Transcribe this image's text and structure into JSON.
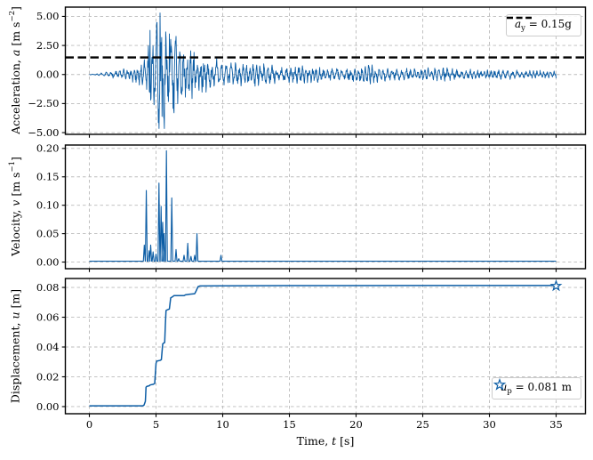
{
  "figure": {
    "xlabel": {
      "prefix": "Time, ",
      "var": "t",
      "suffix": " [s]"
    },
    "x_ticks": {
      "values": [
        0,
        5,
        10,
        15,
        20,
        25,
        30,
        35
      ],
      "labels": [
        "0",
        "5",
        "10",
        "15",
        "20",
        "25",
        "30",
        "35"
      ]
    },
    "xlim": [
      -1.8,
      37.2
    ],
    "colors": {
      "line": "#0C5DA5",
      "threshold": "#000000",
      "grid": "#bbbbbb",
      "spine": "#000000",
      "legend_border": "#cccccc",
      "tick_text": "#000000"
    }
  },
  "chart_data": [
    {
      "id": "acceleration",
      "type": "line",
      "ylabel": {
        "prefix": "Acceleration, ",
        "var": "a",
        "mid": " [m s",
        "sup": "−2",
        "suffix": "]"
      },
      "y_ticks": {
        "values": [
          5,
          2.5,
          0,
          -2.5,
          -5
        ],
        "labels": [
          "5.00",
          "2.50",
          "0.00",
          "−2.50",
          "−5.00"
        ]
      },
      "ylim": [
        -5.15,
        5.8
      ],
      "grid": true,
      "threshold": {
        "value": 1.4715,
        "legend": {
          "var": "a",
          "sub": "y",
          "rest": " = 0.15g"
        },
        "legend_position": "upper right"
      },
      "peak_acceleration": 5.3,
      "min_acceleration": -4.65,
      "key_points": [
        [
          5.3,
          5.3
        ],
        [
          5.62,
          -4.65
        ],
        [
          5.05,
          4.45
        ],
        [
          4.55,
          3.8
        ],
        [
          5.45,
          -3.6
        ],
        [
          6.0,
          3.5
        ],
        [
          6.35,
          -3.3
        ],
        [
          4.85,
          -2.6
        ]
      ],
      "envelope": [
        [
          0,
          0.03
        ],
        [
          0.5,
          0.06
        ],
        [
          1,
          0.15
        ],
        [
          1.5,
          0.25
        ],
        [
          2,
          0.35
        ],
        [
          2.5,
          0.45
        ],
        [
          3,
          0.55
        ],
        [
          3.5,
          0.7
        ],
        [
          3.9,
          0.95
        ],
        [
          4.2,
          1.9
        ],
        [
          4.5,
          3.2
        ],
        [
          4.8,
          3.9
        ],
        [
          5.1,
          4.6
        ],
        [
          5.3,
          5.3
        ],
        [
          5.6,
          4.7
        ],
        [
          5.9,
          4.0
        ],
        [
          6.2,
          3.6
        ],
        [
          6.5,
          3.3
        ],
        [
          6.8,
          2.8
        ],
        [
          7.2,
          2.4
        ],
        [
          7.6,
          2.1
        ],
        [
          8,
          1.9
        ],
        [
          8.6,
          1.7
        ],
        [
          9.2,
          1.5
        ],
        [
          9.8,
          1.2
        ],
        [
          10.5,
          1.1
        ],
        [
          11.5,
          1.0
        ],
        [
          12.5,
          0.95
        ],
        [
          13.5,
          0.9
        ],
        [
          14.5,
          0.8
        ],
        [
          15.5,
          0.75
        ],
        [
          17,
          0.65
        ],
        [
          18.5,
          0.6
        ],
        [
          20,
          0.65
        ],
        [
          21,
          0.85
        ],
        [
          22,
          0.55
        ],
        [
          23.5,
          0.5
        ],
        [
          25,
          0.55
        ],
        [
          26.5,
          0.6
        ],
        [
          28,
          0.45
        ],
        [
          29.5,
          0.4
        ],
        [
          31,
          0.45
        ],
        [
          32.5,
          0.35
        ],
        [
          34,
          0.35
        ],
        [
          35,
          0.3
        ]
      ],
      "synth": {
        "dt": 0.025,
        "freq": 3.35,
        "seed": 7,
        "t_start": 0,
        "t_end": 35
      }
    },
    {
      "id": "velocity",
      "type": "line",
      "ylabel": {
        "prefix": "Velocity, ",
        "var": "v",
        "mid": " [m s",
        "sup": "−1",
        "suffix": "]"
      },
      "y_ticks": {
        "values": [
          0.2,
          0.15,
          0.1,
          0.05,
          0.0
        ],
        "labels": [
          "0.20",
          "0.15",
          "0.10",
          "0.05",
          "0.00"
        ]
      },
      "ylim": [
        -0.0117,
        0.206
      ],
      "grid": true,
      "baseline": 0.0015,
      "spike_halfwidth": 0.07,
      "spikes": [
        [
          4.12,
          0.03
        ],
        [
          4.27,
          0.126
        ],
        [
          4.48,
          0.02
        ],
        [
          4.6,
          0.03
        ],
        [
          4.78,
          0.018
        ],
        [
          5.0,
          0.014
        ],
        [
          5.22,
          0.139
        ],
        [
          5.38,
          0.098
        ],
        [
          5.5,
          0.07
        ],
        [
          5.6,
          0.05
        ],
        [
          5.78,
          0.196
        ],
        [
          6.18,
          0.113
        ],
        [
          6.5,
          0.022
        ],
        [
          6.7,
          0.006
        ],
        [
          7.1,
          0.012
        ],
        [
          7.38,
          0.033
        ],
        [
          7.62,
          0.01
        ],
        [
          7.9,
          0.012
        ],
        [
          8.07,
          0.05
        ],
        [
          9.87,
          0.012
        ]
      ],
      "t_start": 0,
      "t_end": 35
    },
    {
      "id": "displacement",
      "type": "line",
      "ylabel": {
        "prefix": "Displacement, ",
        "var": "u",
        "mid": " [m",
        "sup": "",
        "suffix": "]"
      },
      "y_ticks": {
        "values": [
          0.08,
          0.06,
          0.04,
          0.02,
          0.0
        ],
        "labels": [
          "0.08",
          "0.06",
          "0.04",
          "0.02",
          "0.00"
        ]
      },
      "ylim": [
        -0.0048,
        0.086
      ],
      "grid": true,
      "points": [
        [
          0,
          0.0005
        ],
        [
          4.0,
          0.0005
        ],
        [
          4.1,
          0.001
        ],
        [
          4.2,
          0.0035
        ],
        [
          4.25,
          0.013
        ],
        [
          4.3,
          0.0135
        ],
        [
          4.5,
          0.014
        ],
        [
          4.55,
          0.0145
        ],
        [
          4.8,
          0.015
        ],
        [
          4.9,
          0.0155
        ],
        [
          5.0,
          0.029
        ],
        [
          5.05,
          0.0305
        ],
        [
          5.3,
          0.031
        ],
        [
          5.4,
          0.0315
        ],
        [
          5.5,
          0.042
        ],
        [
          5.55,
          0.0425
        ],
        [
          5.65,
          0.043
        ],
        [
          5.7,
          0.055
        ],
        [
          5.75,
          0.0645
        ],
        [
          5.85,
          0.065
        ],
        [
          6.0,
          0.0655
        ],
        [
          6.1,
          0.073
        ],
        [
          6.2,
          0.0735
        ],
        [
          6.35,
          0.0745
        ],
        [
          7.1,
          0.0745
        ],
        [
          7.2,
          0.075
        ],
        [
          7.55,
          0.0755
        ],
        [
          7.9,
          0.0758
        ],
        [
          8.0,
          0.0775
        ],
        [
          8.15,
          0.0805
        ],
        [
          8.3,
          0.081
        ],
        [
          10,
          0.0811
        ],
        [
          15,
          0.0812
        ],
        [
          25,
          0.0813
        ],
        [
          35,
          0.0813
        ]
      ],
      "marker": {
        "t": 35,
        "u": 0.081,
        "shape": "star",
        "legend": {
          "var": "u",
          "sub": "p",
          "rest": " = 0.081 m"
        },
        "legend_position": "lower right"
      }
    }
  ]
}
